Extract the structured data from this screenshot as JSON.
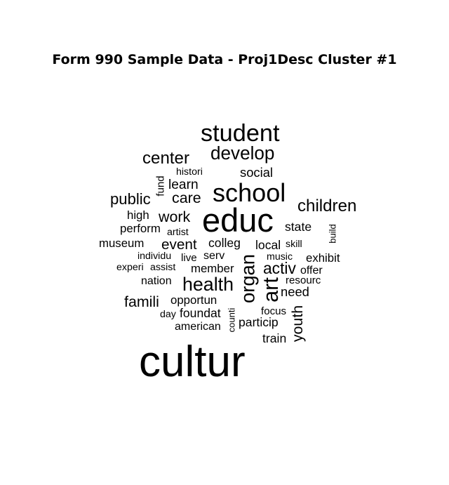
{
  "chart_data": {
    "type": "wordcloud",
    "title": "Form 990 Sample Data - Proj1Desc Cluster #1",
    "text_color": "#000000",
    "background": "#ffffff",
    "words": [
      {
        "text": "cultur",
        "weight": 100,
        "orientation": "horizontal"
      },
      {
        "text": "educ",
        "weight": 72,
        "orientation": "horizontal"
      },
      {
        "text": "school",
        "weight": 53,
        "orientation": "horizontal"
      },
      {
        "text": "student",
        "weight": 50,
        "orientation": "horizontal"
      },
      {
        "text": "art",
        "weight": 44,
        "orientation": "vertical"
      },
      {
        "text": "organ",
        "weight": 39,
        "orientation": "vertical"
      },
      {
        "text": "health",
        "weight": 38,
        "orientation": "horizontal"
      },
      {
        "text": "develop",
        "weight": 37,
        "orientation": "horizontal"
      },
      {
        "text": "children",
        "weight": 34,
        "orientation": "horizontal"
      },
      {
        "text": "center",
        "weight": 34,
        "orientation": "horizontal"
      },
      {
        "text": "activ",
        "weight": 32,
        "orientation": "horizontal"
      },
      {
        "text": "public",
        "weight": 31,
        "orientation": "horizontal"
      },
      {
        "text": "famili",
        "weight": 30,
        "orientation": "horizontal"
      },
      {
        "text": "youth",
        "weight": 30,
        "orientation": "vertical"
      },
      {
        "text": "care",
        "weight": 30,
        "orientation": "horizontal"
      },
      {
        "text": "work",
        "weight": 30,
        "orientation": "horizontal"
      },
      {
        "text": "event",
        "weight": 29,
        "orientation": "horizontal"
      },
      {
        "text": "learn",
        "weight": 27,
        "orientation": "horizontal"
      },
      {
        "text": "social",
        "weight": 26,
        "orientation": "horizontal"
      },
      {
        "text": "need",
        "weight": 26,
        "orientation": "horizontal"
      },
      {
        "text": "local",
        "weight": 25,
        "orientation": "horizontal"
      },
      {
        "text": "state",
        "weight": 25,
        "orientation": "horizontal"
      },
      {
        "text": "train",
        "weight": 25,
        "orientation": "horizontal"
      },
      {
        "text": "colleg",
        "weight": 25,
        "orientation": "horizontal"
      },
      {
        "text": "particip",
        "weight": 25,
        "orientation": "horizontal"
      },
      {
        "text": "foundat",
        "weight": 25,
        "orientation": "horizontal"
      },
      {
        "text": "member",
        "weight": 24,
        "orientation": "horizontal"
      },
      {
        "text": "museum",
        "weight": 24,
        "orientation": "horizontal"
      },
      {
        "text": "perform",
        "weight": 24,
        "orientation": "horizontal"
      },
      {
        "text": "opportun",
        "weight": 24,
        "orientation": "horizontal"
      },
      {
        "text": "exhibit",
        "weight": 24,
        "orientation": "horizontal"
      },
      {
        "text": "high",
        "weight": 24,
        "orientation": "horizontal"
      },
      {
        "text": "american",
        "weight": 23,
        "orientation": "horizontal"
      },
      {
        "text": "serv",
        "weight": 23,
        "orientation": "horizontal"
      },
      {
        "text": "offer",
        "weight": 23,
        "orientation": "horizontal"
      },
      {
        "text": "nation",
        "weight": 23,
        "orientation": "horizontal"
      },
      {
        "text": "fund",
        "weight": 22,
        "orientation": "vertical"
      },
      {
        "text": "live",
        "weight": 22,
        "orientation": "horizontal"
      },
      {
        "text": "resourc",
        "weight": 22,
        "orientation": "horizontal"
      },
      {
        "text": "focus",
        "weight": 22,
        "orientation": "horizontal"
      },
      {
        "text": "histori",
        "weight": 21,
        "orientation": "horizontal"
      },
      {
        "text": "artist",
        "weight": 21,
        "orientation": "horizontal"
      },
      {
        "text": "individu",
        "weight": 21,
        "orientation": "horizontal"
      },
      {
        "text": "experi",
        "weight": 21,
        "orientation": "horizontal"
      },
      {
        "text": "assist",
        "weight": 21,
        "orientation": "horizontal"
      },
      {
        "text": "music",
        "weight": 21,
        "orientation": "horizontal"
      },
      {
        "text": "skill",
        "weight": 21,
        "orientation": "horizontal"
      },
      {
        "text": "day",
        "weight": 21,
        "orientation": "horizontal"
      },
      {
        "text": "build",
        "weight": 20,
        "orientation": "vertical"
      },
      {
        "text": "counti",
        "weight": 20,
        "orientation": "vertical"
      }
    ]
  }
}
